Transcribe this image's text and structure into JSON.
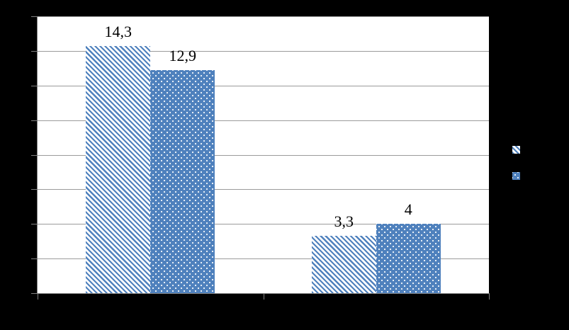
{
  "chart_data": {
    "type": "bar",
    "categories": [
      "",
      ""
    ],
    "series": [
      {
        "name": "",
        "pattern": "diagonal-stripes",
        "values": [
          14.3,
          3.3
        ],
        "labels": [
          "14,3",
          "3,3"
        ]
      },
      {
        "name": "",
        "pattern": "dots",
        "values": [
          12.9,
          4.0
        ],
        "labels": [
          "12,9",
          "4"
        ]
      }
    ],
    "ylim": [
      0,
      16
    ],
    "ytick_step": 2,
    "grid": "horizontal",
    "legend_position": "right",
    "colors": {
      "bar_blue": "#4f81bd",
      "pattern_white": "#ffffff",
      "gridline": "#9b9b9b",
      "axis": "#808080",
      "plot_background": "#ffffff",
      "page_background": "#000000",
      "label_text": "#000000"
    }
  }
}
